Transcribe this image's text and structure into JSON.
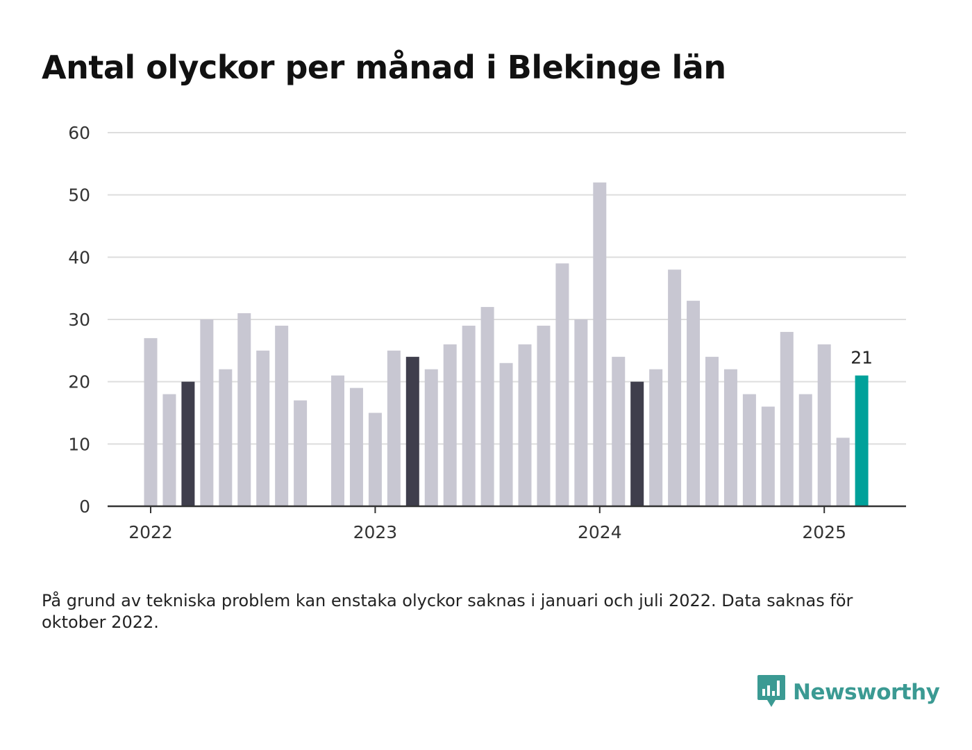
{
  "header": {
    "title": "Antal olyckor per månad i Blekinge län"
  },
  "chart_data": {
    "type": "bar",
    "title": "Antal olyckor per månad i Blekinge län",
    "xlabel": "",
    "ylabel": "",
    "ylim": [
      0,
      60
    ],
    "y_ticks": [
      0,
      10,
      20,
      30,
      40,
      50,
      60
    ],
    "x_ticks": [
      "2022",
      "2023",
      "2024",
      "2025"
    ],
    "grid": true,
    "categories": [
      "2022-01",
      "2022-02",
      "2022-03",
      "2022-04",
      "2022-05",
      "2022-06",
      "2022-07",
      "2022-08",
      "2022-09",
      "2022-10",
      "2022-11",
      "2022-12",
      "2023-01",
      "2023-02",
      "2023-03",
      "2023-04",
      "2023-05",
      "2023-06",
      "2023-07",
      "2023-08",
      "2023-09",
      "2023-10",
      "2023-11",
      "2023-12",
      "2024-01",
      "2024-02",
      "2024-03",
      "2024-04",
      "2024-05",
      "2024-06",
      "2024-07",
      "2024-08",
      "2024-09",
      "2024-10",
      "2024-11",
      "2024-12",
      "2025-01",
      "2025-02",
      "2025-03"
    ],
    "values": [
      27,
      18,
      20,
      30,
      22,
      31,
      25,
      29,
      17,
      null,
      21,
      19,
      15,
      25,
      24,
      22,
      26,
      29,
      32,
      23,
      26,
      29,
      39,
      30,
      52,
      24,
      20,
      22,
      38,
      33,
      24,
      22,
      18,
      16,
      28,
      18,
      26,
      11,
      21
    ],
    "highlight_dark": [
      "2022-03",
      "2023-03",
      "2024-03"
    ],
    "highlight_current": "2025-03",
    "data_labels": [
      {
        "category": "2025-03",
        "text": "21"
      }
    ],
    "colors": {
      "bar": "#c8c7d2",
      "dark": "#3f3e4c",
      "current": "#00a19a",
      "grid": "#dddddd",
      "axis": "#333333"
    }
  },
  "footnote": "På grund av tekniska problem kan enstaka olyckor saknas i januari och juli 2022. Data saknas för oktober 2022.",
  "brand": {
    "name": "Newsworthy",
    "icon": "newsworthy-logo-icon",
    "color": "#3b9a93"
  }
}
